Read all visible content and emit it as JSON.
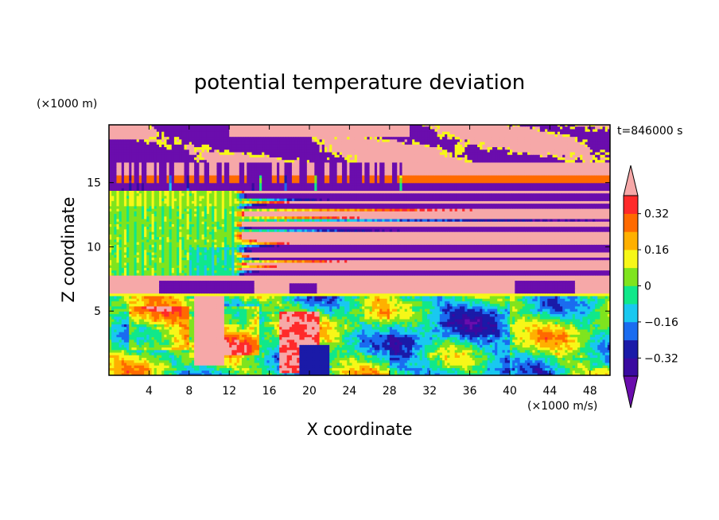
{
  "chart_data": {
    "type": "heatmap",
    "title": "potential temperature deviation",
    "xlabel": "X coordinate",
    "ylabel": "Z coordinate",
    "x_unit": "(×1000 m/s)",
    "y_unit": "(×1000 m)",
    "time_label": "t=846000 s",
    "xlim": [
      0,
      50
    ],
    "ylim": [
      0,
      19.5
    ],
    "x_ticks": [
      "4",
      "8",
      "12",
      "16",
      "20",
      "24",
      "28",
      "32",
      "36",
      "40",
      "44",
      "48"
    ],
    "y_ticks": [
      "5",
      "10",
      "15"
    ],
    "colorbar": {
      "tick_labels": [
        "0.32",
        "0.16",
        "0",
        "−0.16",
        "−0.32"
      ],
      "levels": [
        -0.4,
        -0.32,
        -0.24,
        -0.16,
        -0.08,
        0,
        0.08,
        0.16,
        0.24,
        0.32,
        0.4
      ],
      "colors": [
        "#6a0dad",
        "#3a0aa0",
        "#1a1aa8",
        "#1a6cf0",
        "#19c8f0",
        "#10e88a",
        "#7fe41e",
        "#f7f718",
        "#ffb000",
        "#ff6a00",
        "#ff2a2a",
        "#f6a8a8"
      ]
    },
    "layers": [
      {
        "z_range": [
          16.5,
          19.5
        ],
        "dominant": "mixed extreme (pink / purple)"
      },
      {
        "z_range": [
          14.5,
          16.5
        ],
        "dominant": "noisy transition"
      },
      {
        "z_range": [
          7.9,
          14.5
        ],
        "dominant": "near zero (green)"
      },
      {
        "z_range": [
          6.5,
          7.9
        ],
        "dominant": "positive band (pink)"
      },
      {
        "z_range": [
          0,
          6.5
        ],
        "dominant": "turbulent mixed layer"
      }
    ]
  }
}
